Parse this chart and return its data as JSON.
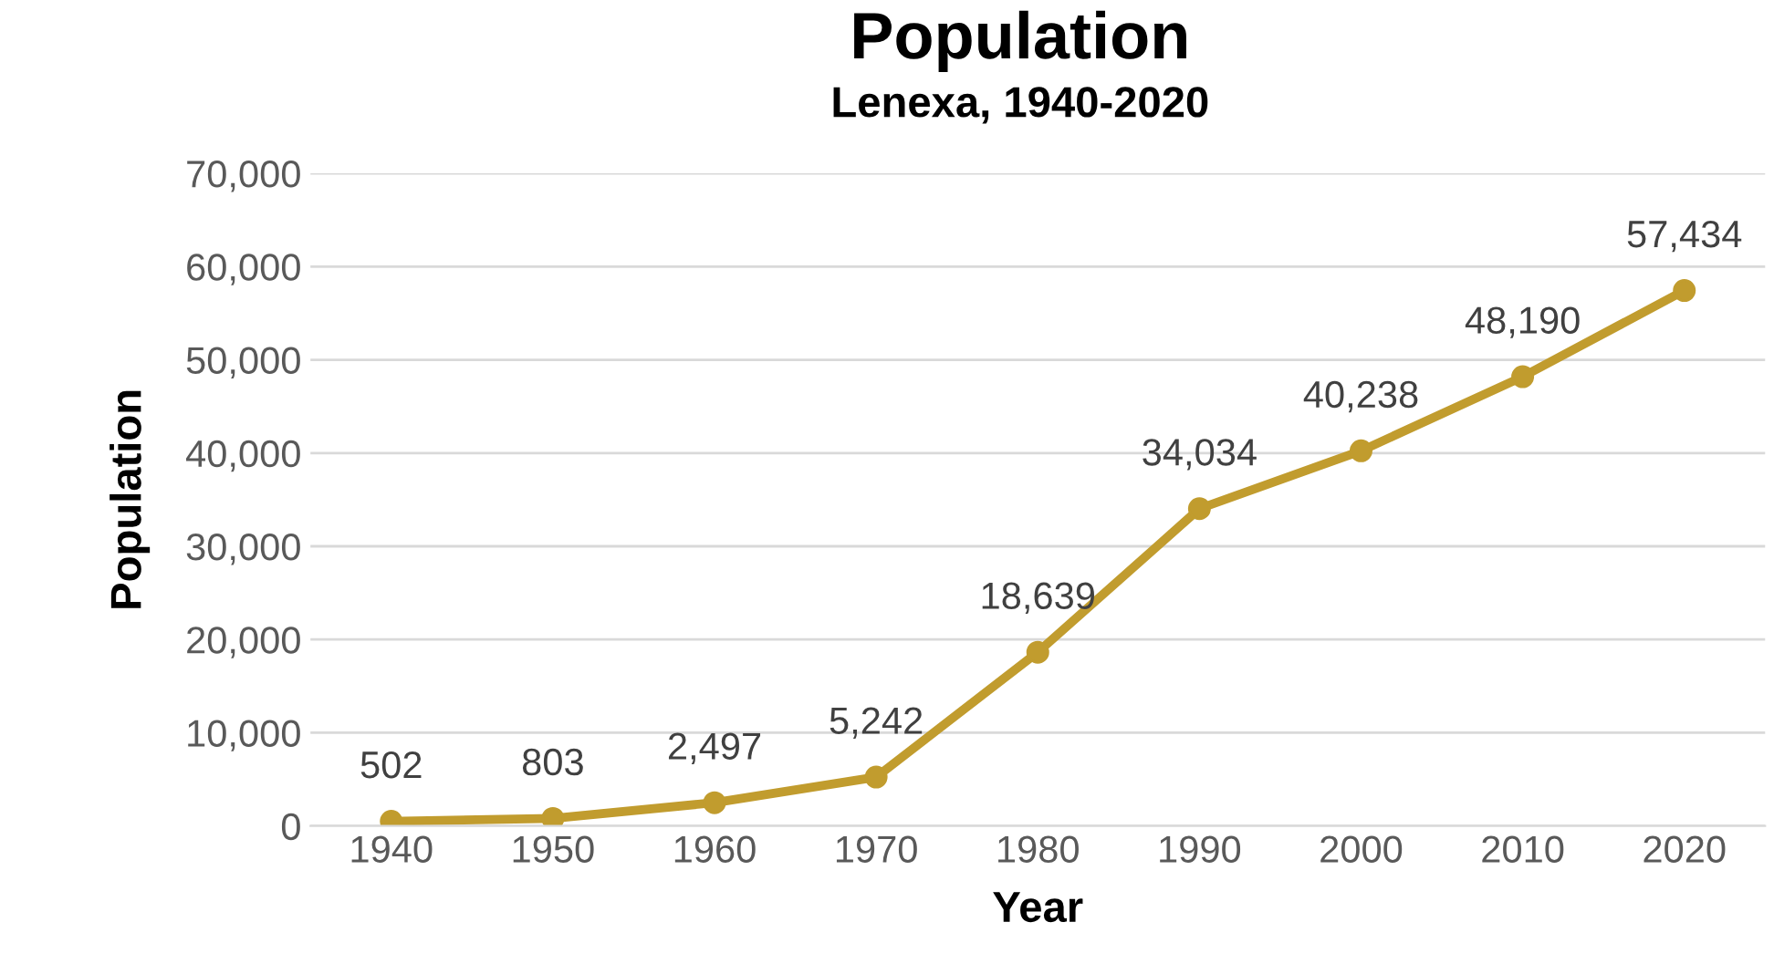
{
  "chart_data": {
    "type": "line",
    "title": "Population",
    "subtitle": "Lenexa, 1940-2020",
    "xlabel": "Year",
    "ylabel": "Population",
    "categories": [
      "1940",
      "1950",
      "1960",
      "1970",
      "1980",
      "1990",
      "2000",
      "2010",
      "2020"
    ],
    "series": [
      {
        "color": "#c19c2e",
        "values": [
          502,
          803,
          2497,
          5242,
          18639,
          34034,
          40238,
          48190,
          57434
        ],
        "value_labels": [
          "502",
          "803",
          "2,497",
          "5,242",
          "18,639",
          "34,034",
          "40,238",
          "48,190",
          "57,434"
        ]
      }
    ],
    "ylim": [
      0,
      70000
    ],
    "yticks": [
      {
        "value": 0,
        "label": "0"
      },
      {
        "value": 10000,
        "label": "10,000"
      },
      {
        "value": 20000,
        "label": "20,000"
      },
      {
        "value": 30000,
        "label": "30,000"
      },
      {
        "value": 40000,
        "label": "40,000"
      },
      {
        "value": 50000,
        "label": "50,000"
      },
      {
        "value": 60000,
        "label": "60,000"
      },
      {
        "value": 70000,
        "label": "70,000"
      }
    ],
    "grid": "y",
    "marker": "circle",
    "line_style": "solid",
    "legend": false
  }
}
